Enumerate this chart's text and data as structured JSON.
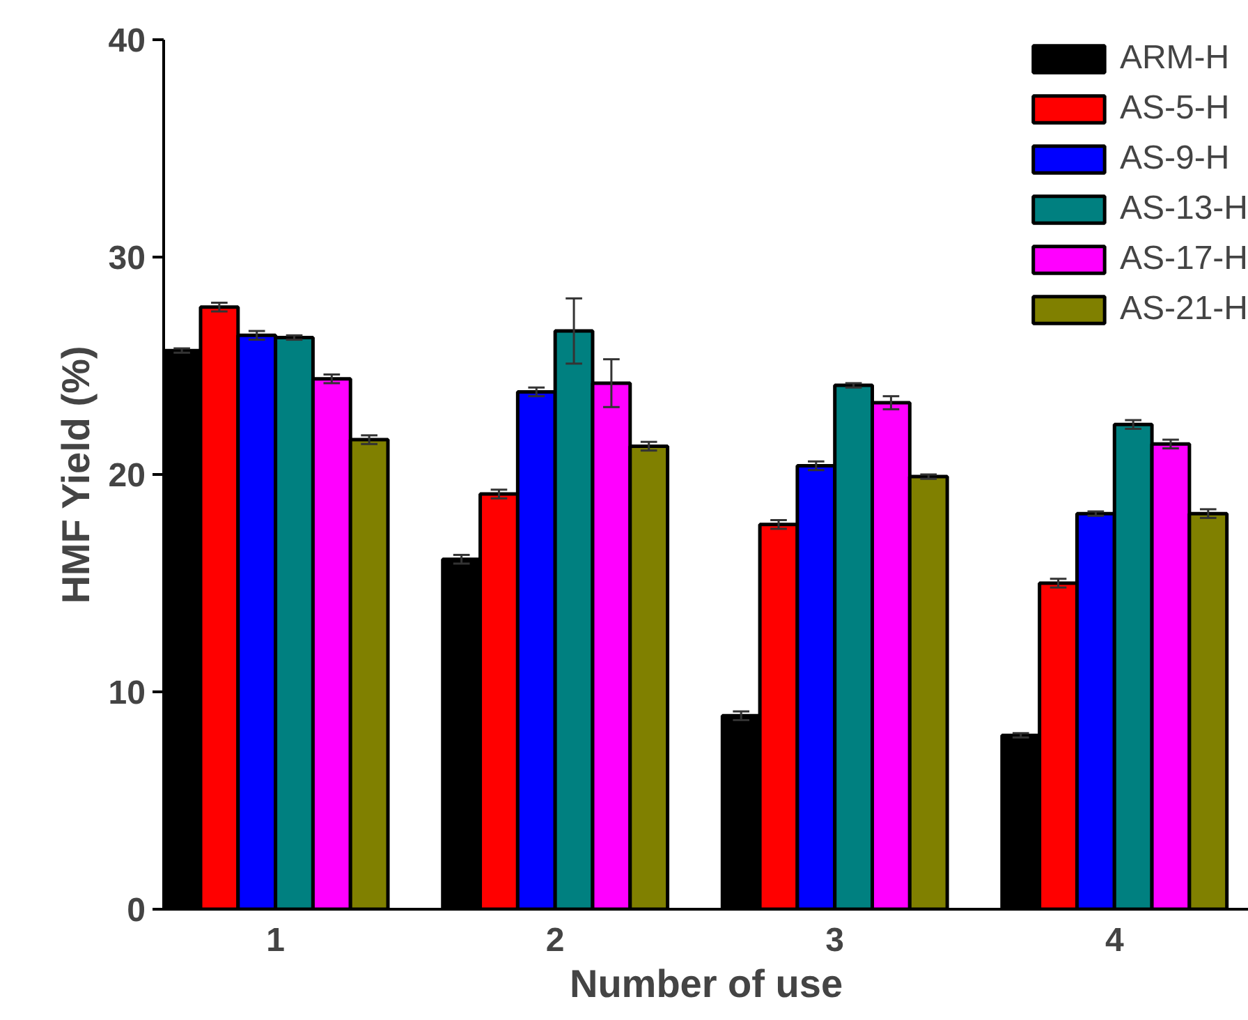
{
  "chart_data": {
    "type": "bar",
    "xlabel": "Number of use",
    "ylabel": "HMF Yield (%)",
    "categories": [
      "1",
      "2",
      "3",
      "4"
    ],
    "ylim": [
      0,
      40
    ],
    "yticks": [
      0,
      10,
      20,
      30,
      40
    ],
    "grid": false,
    "legend": "top right",
    "series": [
      {
        "name": "ARM-H",
        "color": "#000000",
        "values": [
          25.7,
          16.1,
          8.9,
          8.0
        ],
        "errors": [
          0.1,
          0.2,
          0.2,
          0.1
        ]
      },
      {
        "name": "AS-5-H",
        "color": "#ff0000",
        "values": [
          27.7,
          19.1,
          17.7,
          15.0
        ],
        "errors": [
          0.2,
          0.2,
          0.2,
          0.2
        ]
      },
      {
        "name": "AS-9-H",
        "color": "#0000ff",
        "values": [
          26.4,
          23.8,
          20.4,
          18.2
        ],
        "errors": [
          0.2,
          0.2,
          0.2,
          0.1
        ]
      },
      {
        "name": "AS-13-H",
        "color": "#008080",
        "values": [
          26.3,
          26.6,
          24.1,
          22.3
        ],
        "errors": [
          0.1,
          1.5,
          0.1,
          0.2
        ]
      },
      {
        "name": "AS-17-H",
        "color": "#ff00ff",
        "values": [
          24.4,
          24.2,
          23.3,
          21.4
        ],
        "errors": [
          0.2,
          1.1,
          0.3,
          0.2
        ]
      },
      {
        "name": "AS-21-H",
        "color": "#808000",
        "values": [
          21.6,
          21.3,
          19.9,
          18.2
        ],
        "errors": [
          0.2,
          0.2,
          0.1,
          0.2
        ]
      }
    ]
  }
}
